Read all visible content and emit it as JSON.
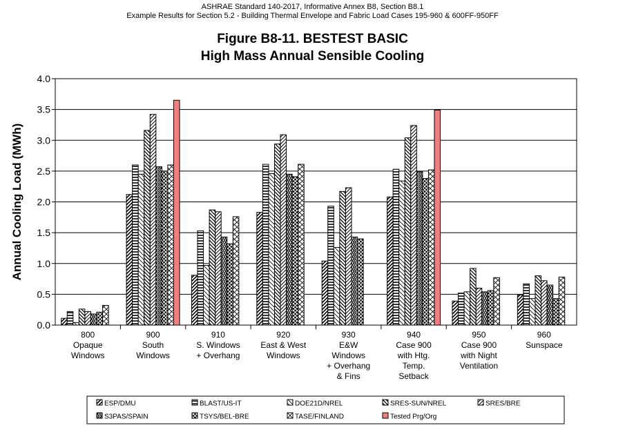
{
  "header": {
    "line1": "ASHRAE Standard 140-2017, Informative Annex B8, Section B8.1",
    "line2": "Example Results for Section 5.2 - Building Thermal Envelope and Fabric Load Cases 195-960 & 600FF-950FF"
  },
  "chart_data": {
    "type": "bar",
    "title": "Figure B8-11.  BESTEST BASIC",
    "subtitle": "High Mass Annual Sensible Cooling",
    "ylabel": "Annual Cooling Load (MWh)",
    "xlabel": "",
    "ylim": [
      0,
      4.0
    ],
    "yticks": [
      "0.0",
      "0.5",
      "1.0",
      "1.5",
      "2.0",
      "2.5",
      "3.0",
      "3.5",
      "4.0"
    ],
    "grid": true,
    "legend_position": "bottom",
    "categories": [
      [
        "800",
        "Opaque",
        "Windows"
      ],
      [
        "900",
        "South",
        "Windows"
      ],
      [
        "910",
        "S. Windows",
        "+ Overhang"
      ],
      [
        "920",
        "East & West",
        "Windows"
      ],
      [
        "930",
        "E&W",
        "Windows",
        "+ Overhang",
        "& Fins"
      ],
      [
        "940",
        "Case 900",
        "with Htg.",
        "Temp.",
        "Setback"
      ],
      [
        "950",
        "Case 900",
        "with Night",
        "Ventilation"
      ],
      [
        "960",
        "Sunspace"
      ]
    ],
    "series": [
      {
        "name": "ESP/DMU",
        "pattern": "diag-fwd",
        "values": [
          0.11,
          2.12,
          0.81,
          1.83,
          1.04,
          2.08,
          0.39,
          0.49
        ]
      },
      {
        "name": "BLAST/US-IT",
        "pattern": "horiz",
        "values": [
          0.22,
          2.6,
          1.53,
          2.61,
          1.93,
          2.53,
          0.52,
          0.67
        ]
      },
      {
        "name": "DOE21D/NREL",
        "pattern": "diag-back",
        "values": [
          0.04,
          2.45,
          0.97,
          2.46,
          1.26,
          2.34,
          0.54,
          0.43
        ]
      },
      {
        "name": "SRES-SUN/NREL",
        "pattern": "diag-back-bold",
        "values": [
          0.26,
          3.16,
          1.87,
          2.94,
          2.17,
          3.04,
          0.92,
          0.8
        ]
      },
      {
        "name": "SRES/BRE",
        "pattern": "diag-fwd-light",
        "values": [
          0.22,
          3.42,
          1.84,
          3.09,
          2.23,
          3.24,
          0.6,
          0.72
        ]
      },
      {
        "name": "S3PAS/SPAIN",
        "pattern": "zigzag",
        "values": [
          0.18,
          2.57,
          1.43,
          2.45,
          1.43,
          2.49,
          0.54,
          0.65
        ]
      },
      {
        "name": "TSYS/BEL-BRE",
        "pattern": "cross",
        "values": [
          0.21,
          2.5,
          1.32,
          2.41,
          1.4,
          2.38,
          0.56,
          0.43
        ]
      },
      {
        "name": "TASE/FINLAND",
        "pattern": "diag-cross",
        "values": [
          0.32,
          2.6,
          1.76,
          2.61,
          null,
          2.52,
          0.77,
          0.78
        ]
      },
      {
        "name": "Tested Prg/Org",
        "pattern": "solid",
        "color": "#f08080",
        "values": [
          null,
          3.65,
          null,
          null,
          null,
          3.49,
          null,
          null
        ]
      }
    ]
  }
}
